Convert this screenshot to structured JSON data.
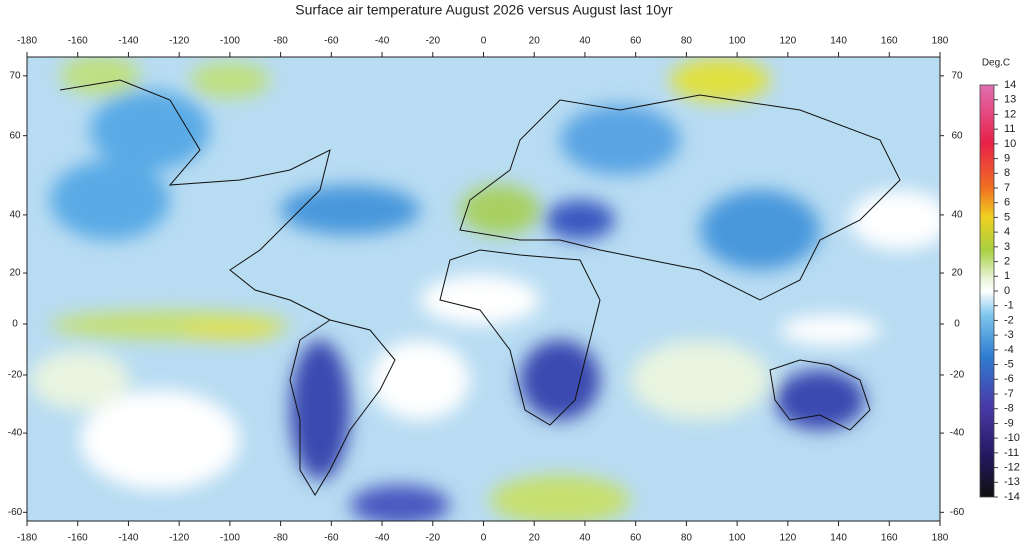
{
  "map": {
    "title": "Surface air temperature August 2026 versus August last 10yr",
    "lon_ticks": [
      -180,
      -160,
      -140,
      -120,
      -100,
      -80,
      -60,
      -40,
      -20,
      0,
      20,
      40,
      60,
      80,
      100,
      120,
      140,
      160,
      180
    ],
    "lat_ticks": [
      70,
      60,
      40,
      20,
      0,
      -20,
      -40,
      -60
    ],
    "colorbar": {
      "label": "Deg.C",
      "ticks": [
        14,
        13,
        12,
        11,
        10,
        9,
        8,
        7,
        6,
        5,
        4,
        3,
        2,
        1,
        0,
        -1,
        -2,
        -3,
        -4,
        -5,
        -6,
        -7,
        -8,
        -9,
        -10,
        -11,
        -12,
        -13,
        -14
      ]
    }
  }
}
